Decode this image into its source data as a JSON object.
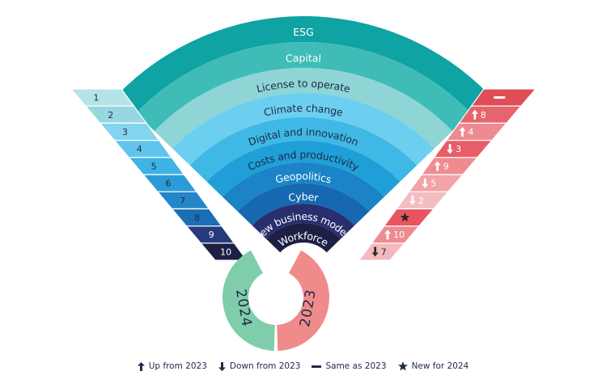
{
  "bands": [
    {
      "label": "ESG",
      "color": "#0fa3a3",
      "text": "light"
    },
    {
      "label": "Capital",
      "color": "#3fbcb8",
      "text": "light"
    },
    {
      "label": "License to operate",
      "color": "#8fd5d6",
      "text": "dark"
    },
    {
      "label": "Climate change",
      "color": "#6ccff0",
      "text": "dark"
    },
    {
      "label": "Digital and innovation",
      "color": "#3fb8e6",
      "text": "dark"
    },
    {
      "label": "Costs and productivity",
      "color": "#1e9fd8",
      "text": "dark"
    },
    {
      "label": "Geopolitics",
      "color": "#1a84c6",
      "text": "light"
    },
    {
      "label": "Cyber",
      "color": "#1668b0",
      "text": "light"
    },
    {
      "label": "New business models",
      "color": "#292f6e",
      "text": "light"
    },
    {
      "label": "Workforce",
      "color": "#1d1f44",
      "text": "light"
    }
  ],
  "ranks_2024": [
    "1",
    "2",
    "3",
    "4",
    "5",
    "6",
    "7",
    "8",
    "9",
    "10"
  ],
  "left_colors": [
    "#b4e4e6",
    "#97d8e0",
    "#83d4ee",
    "#5fc5ec",
    "#3fb3e3",
    "#2c9cd8",
    "#2386c8",
    "#1a6eb4",
    "#273a7a",
    "#1d1f44"
  ],
  "right_ranks": [
    {
      "symbol": "same",
      "value": ""
    },
    {
      "symbol": "up",
      "value": "8"
    },
    {
      "symbol": "up",
      "value": "4"
    },
    {
      "symbol": "down",
      "value": "3"
    },
    {
      "symbol": "up",
      "value": "9"
    },
    {
      "symbol": "down",
      "value": "5"
    },
    {
      "symbol": "down",
      "value": "2"
    },
    {
      "symbol": "star",
      "value": ""
    },
    {
      "symbol": "up",
      "value": "10"
    },
    {
      "symbol": "down",
      "value": "7"
    }
  ],
  "right_colors": [
    "#e04d56",
    "#e6656d",
    "#ee8a91",
    "#e75e66",
    "#ee8b91",
    "#f3a2a7",
    "#f2bcc0",
    "#e8555e",
    "#ee8b91",
    "#f4b9bd"
  ],
  "years": {
    "left": "2024",
    "right": "2023",
    "left_color": "#7fcdaa",
    "right_color": "#f08b8b"
  },
  "legend": [
    {
      "icon": "up",
      "label": "Up from 2023"
    },
    {
      "icon": "down",
      "label": "Down from 2023"
    },
    {
      "icon": "same",
      "label": "Same as 2023"
    },
    {
      "icon": "star",
      "label": "New for 2024"
    }
  ]
}
